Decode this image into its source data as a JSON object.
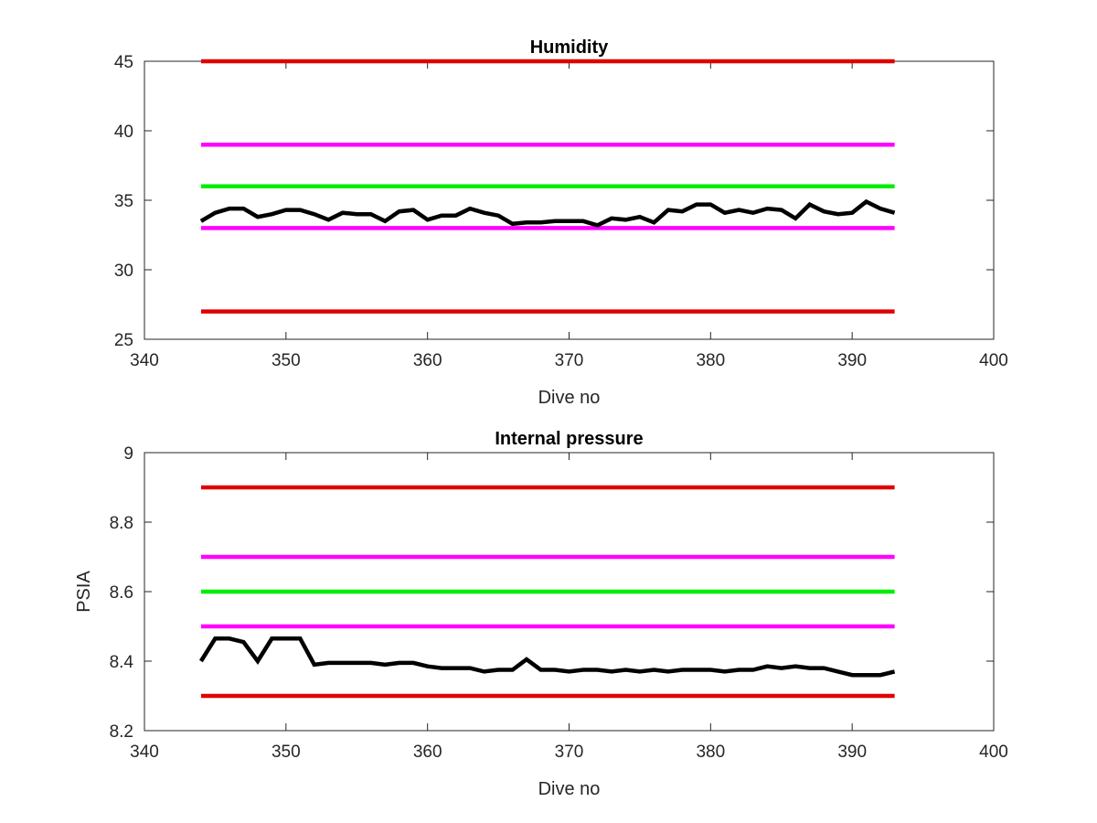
{
  "chart_data": [
    {
      "type": "line",
      "title": "Humidity",
      "xlabel": "Dive no",
      "ylabel": "",
      "xlim": [
        340,
        400
      ],
      "ylim": [
        25,
        45
      ],
      "xticks": [
        "340",
        "350",
        "360",
        "370",
        "380",
        "390",
        "400"
      ],
      "yticks": [
        "25",
        "30",
        "35",
        "40",
        "45"
      ],
      "grid": false,
      "reference_lines": [
        {
          "y": 45,
          "x_range": [
            344,
            393
          ],
          "color": "#e00000"
        },
        {
          "y": 39,
          "x_range": [
            344,
            393
          ],
          "color": "#ff00ff"
        },
        {
          "y": 36,
          "x_range": [
            344,
            393
          ],
          "color": "#00ee00"
        },
        {
          "y": 33,
          "x_range": [
            344,
            393
          ],
          "color": "#ff00ff"
        },
        {
          "y": 27,
          "x_range": [
            344,
            393
          ],
          "color": "#e00000"
        }
      ],
      "series": [
        {
          "color": "#000000",
          "x": [
            344,
            345,
            346,
            347,
            348,
            349,
            350,
            351,
            352,
            353,
            354,
            355,
            356,
            357,
            358,
            359,
            360,
            361,
            362,
            363,
            364,
            365,
            366,
            367,
            368,
            369,
            370,
            371,
            372,
            373,
            374,
            375,
            376,
            377,
            378,
            379,
            380,
            381,
            382,
            383,
            384,
            385,
            386,
            387,
            388,
            389,
            390,
            391,
            392,
            393
          ],
          "values": [
            33.5,
            34.1,
            34.4,
            34.4,
            33.8,
            34.0,
            34.3,
            34.3,
            34.0,
            33.6,
            34.1,
            34.0,
            34.0,
            33.5,
            34.2,
            34.3,
            33.6,
            33.9,
            33.9,
            34.4,
            34.1,
            33.9,
            33.3,
            33.4,
            33.4,
            33.5,
            33.5,
            33.5,
            33.2,
            33.7,
            33.6,
            33.8,
            33.4,
            34.3,
            34.2,
            34.7,
            34.7,
            34.1,
            34.3,
            34.1,
            34.4,
            34.3,
            33.7,
            34.7,
            34.2,
            34.0,
            34.1,
            34.9,
            34.4,
            34.1
          ]
        }
      ]
    },
    {
      "type": "line",
      "title": "Internal pressure",
      "xlabel": "Dive no",
      "ylabel": "PSIA",
      "xlim": [
        340,
        400
      ],
      "ylim": [
        8.2,
        9.0
      ],
      "xticks": [
        "340",
        "350",
        "360",
        "370",
        "380",
        "390",
        "400"
      ],
      "yticks": [
        "8.2",
        "8.4",
        "8.6",
        "8.8",
        "9"
      ],
      "grid": false,
      "reference_lines": [
        {
          "y": 8.9,
          "x_range": [
            344,
            393
          ],
          "color": "#e00000"
        },
        {
          "y": 8.7,
          "x_range": [
            344,
            393
          ],
          "color": "#ff00ff"
        },
        {
          "y": 8.6,
          "x_range": [
            344,
            393
          ],
          "color": "#00ee00"
        },
        {
          "y": 8.5,
          "x_range": [
            344,
            393
          ],
          "color": "#ff00ff"
        },
        {
          "y": 8.3,
          "x_range": [
            344,
            393
          ],
          "color": "#e00000"
        }
      ],
      "series": [
        {
          "color": "#000000",
          "x": [
            344,
            345,
            346,
            347,
            348,
            349,
            350,
            351,
            352,
            353,
            354,
            355,
            356,
            357,
            358,
            359,
            360,
            361,
            362,
            363,
            364,
            365,
            366,
            367,
            368,
            369,
            370,
            371,
            372,
            373,
            374,
            375,
            376,
            377,
            378,
            379,
            380,
            381,
            382,
            383,
            384,
            385,
            386,
            387,
            388,
            389,
            390,
            391,
            392,
            393
          ],
          "values": [
            8.4,
            8.465,
            8.465,
            8.455,
            8.4,
            8.465,
            8.465,
            8.465,
            8.39,
            8.395,
            8.395,
            8.395,
            8.395,
            8.39,
            8.395,
            8.395,
            8.385,
            8.38,
            8.38,
            8.38,
            8.37,
            8.375,
            8.375,
            8.405,
            8.375,
            8.375,
            8.37,
            8.375,
            8.375,
            8.37,
            8.375,
            8.37,
            8.375,
            8.37,
            8.375,
            8.375,
            8.375,
            8.37,
            8.375,
            8.375,
            8.385,
            8.38,
            8.385,
            8.38,
            8.38,
            8.37,
            8.36,
            8.36,
            8.36,
            8.37
          ]
        }
      ]
    }
  ]
}
